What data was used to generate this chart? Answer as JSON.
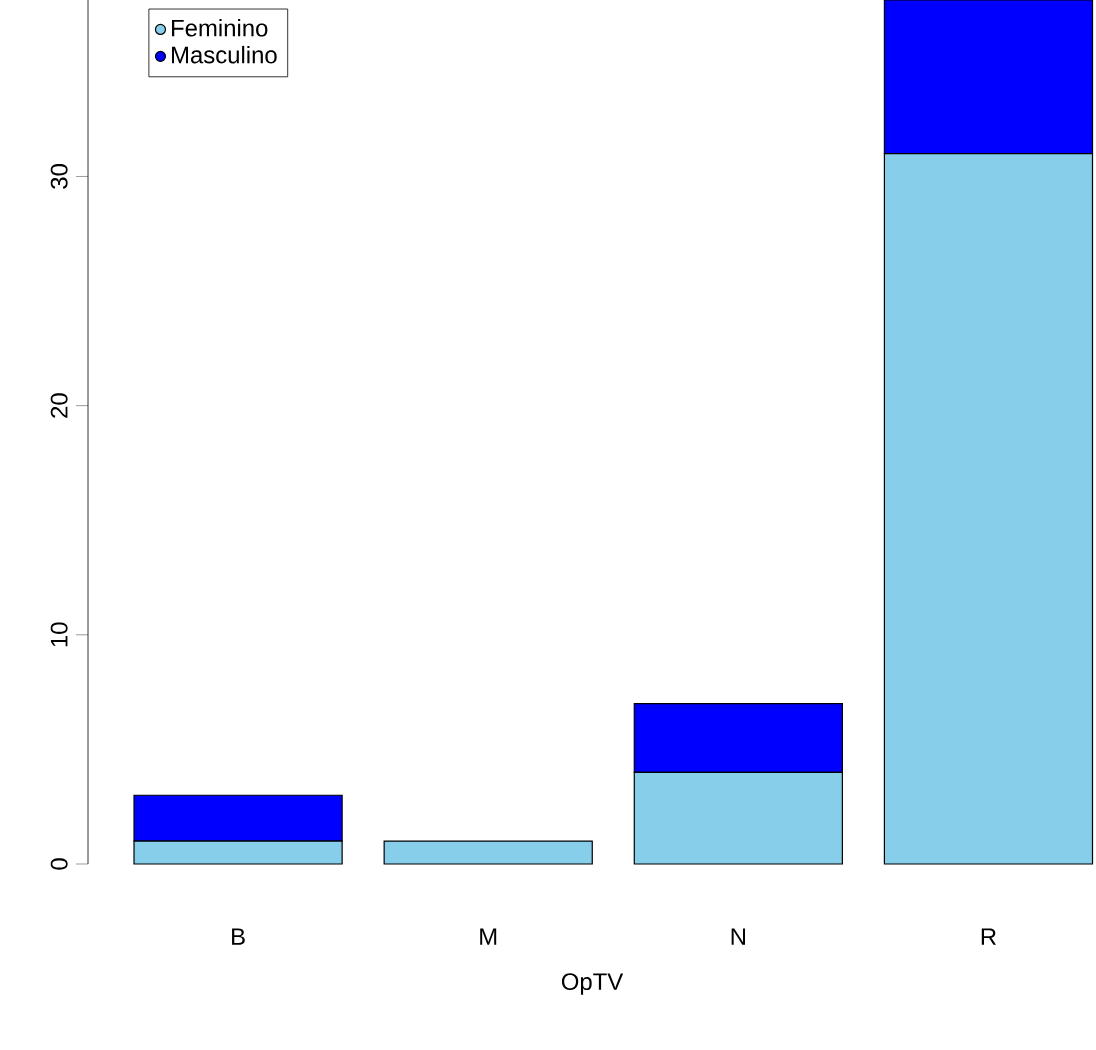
{
  "chart_data": {
    "type": "bar",
    "stacked": true,
    "xlabel": "OpTV",
    "categories": [
      "B",
      "M",
      "N",
      "R"
    ],
    "series": [
      {
        "name": "Feminino",
        "color": "#87ceeb",
        "values": [
          1,
          1,
          4,
          31
        ]
      },
      {
        "name": "Masculino",
        "color": "#0000ff",
        "values": [
          2,
          0,
          3,
          6.7
        ]
      }
    ],
    "ylim": [
      0,
      37.7
    ],
    "yticks": [
      0,
      10,
      20,
      30
    ],
    "legend": "top left"
  }
}
